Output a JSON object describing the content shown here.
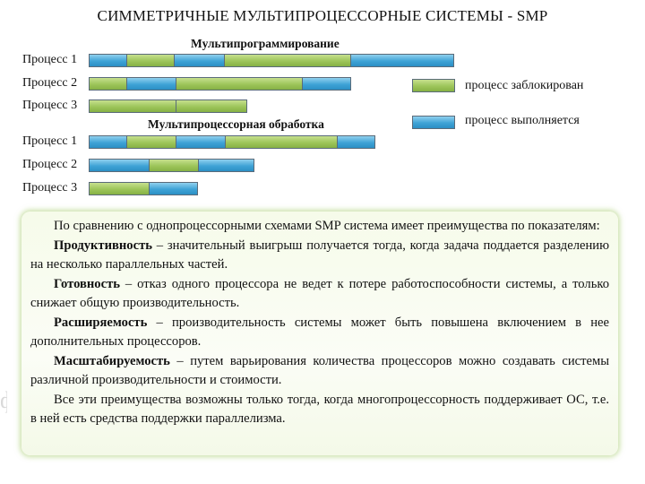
{
  "title": "СИММЕТРИЧНЫЕ МУЛЬТИПРОЦЕССОРНЫЕ СИСТЕМЫ - SMP",
  "multiprogramming": {
    "heading": "Мультипрограммирование",
    "processes": [
      {
        "label": "Процесс 1",
        "segments": [
          "run",
          "wait",
          "run",
          "wait",
          "run"
        ]
      },
      {
        "label": "Процесс 2",
        "segments": [
          "wait",
          "run",
          "wait",
          "run"
        ]
      },
      {
        "label": "Процесс 3",
        "segments": [
          "wait",
          "wait"
        ]
      }
    ]
  },
  "multiprocessing": {
    "heading": "Мультипроцессорная обработка",
    "processes": [
      {
        "label": "Процесс 1",
        "segments": [
          "run",
          "wait",
          "run",
          "wait",
          "run"
        ]
      },
      {
        "label": "Процесс 2",
        "segments": [
          "run",
          "wait",
          "run"
        ]
      },
      {
        "label": "Процесс 3",
        "segments": [
          "wait",
          "run"
        ]
      }
    ]
  },
  "legend": {
    "blocked_label": "процесс заблокирован",
    "running_label": "процесс выполняется"
  },
  "colors": {
    "running": "#3fa3d6",
    "blocked": "#9dc55a",
    "text_box_glow": "#a0c864"
  },
  "body": {
    "intro": "По сравнению с однопроцессорными схемами SMP система имеет преимущества по показателям:",
    "items": [
      {
        "term": "Продуктивность",
        "text": " – значительный выигрыш получается тогда, когда задача поддается разделению на несколько параллельных частей."
      },
      {
        "term": "Готовность",
        "text": " – отказ одного процессора не ведет к потере работоспособности системы, а только снижает общую производительность."
      },
      {
        "term": "Расширяемость",
        "text": " – производительность системы может быть повышена включением в нее дополнительных процессоров."
      },
      {
        "term": "Масштабируемость",
        "text": " – путем варьирования количества процессоров можно создавать системы различной производительности и стоимости."
      }
    ],
    "conclusion": "Все эти преимущества возможны только тогда, когда многопроцессорность поддерживает ОС, т.е. в ней есть средства поддержки параллелизма."
  }
}
